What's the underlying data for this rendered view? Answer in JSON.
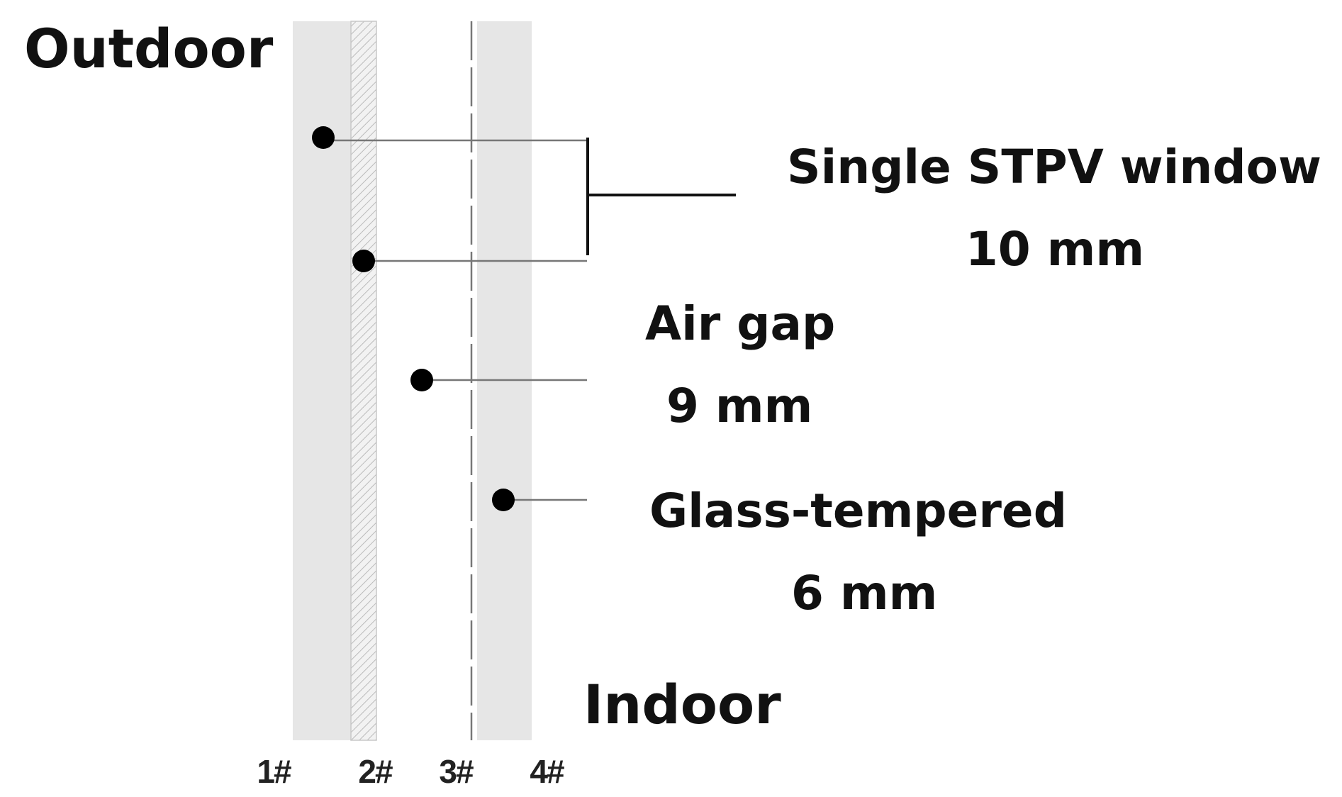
{
  "labels": {
    "outdoor": "Outdoor",
    "indoor": "Indoor"
  },
  "callouts": [
    {
      "name": "Single STPV window",
      "thickness": "10 mm"
    },
    {
      "name": "Air gap",
      "thickness": "9 mm"
    },
    {
      "name": "Glass-tempered",
      "thickness": "6 mm"
    }
  ],
  "surfaces": [
    "1#",
    "2#",
    "3#",
    "4#"
  ]
}
